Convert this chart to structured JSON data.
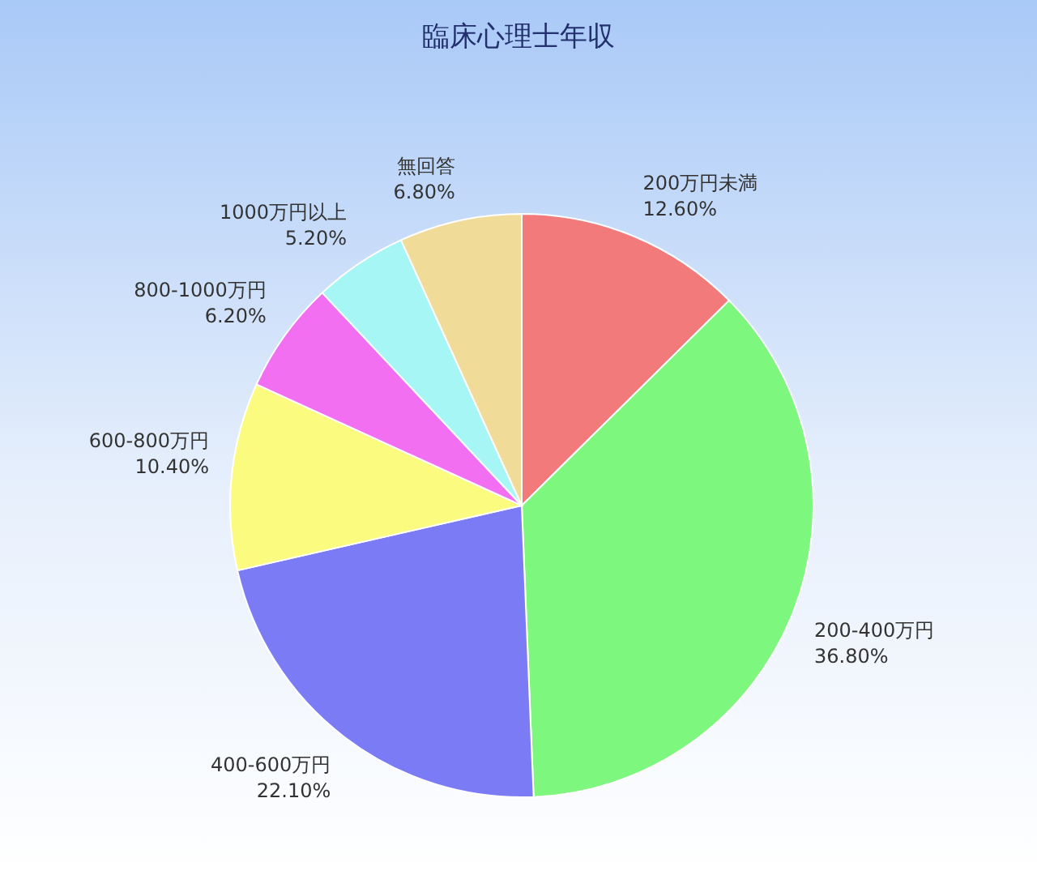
{
  "chart_data": {
    "type": "pie",
    "title": "臨床心理士年収",
    "categories": [
      "200万円未満",
      "200-400万円",
      "400-600万円",
      "600-800万円",
      "800-1000万円",
      "1000万円以上",
      "無回答"
    ],
    "values": [
      12.6,
      36.8,
      22.1,
      10.4,
      6.2,
      5.2,
      6.8
    ],
    "value_labels": [
      "12.60%",
      "36.80%",
      "22.10%",
      "10.40%",
      "6.20%",
      "5.20%",
      "6.80%"
    ],
    "colors": [
      "#f27a7a",
      "#7ef77e",
      "#7b7bf5",
      "#fbfb80",
      "#f26ff2",
      "#a6f6f6",
      "#f0dc98"
    ]
  }
}
